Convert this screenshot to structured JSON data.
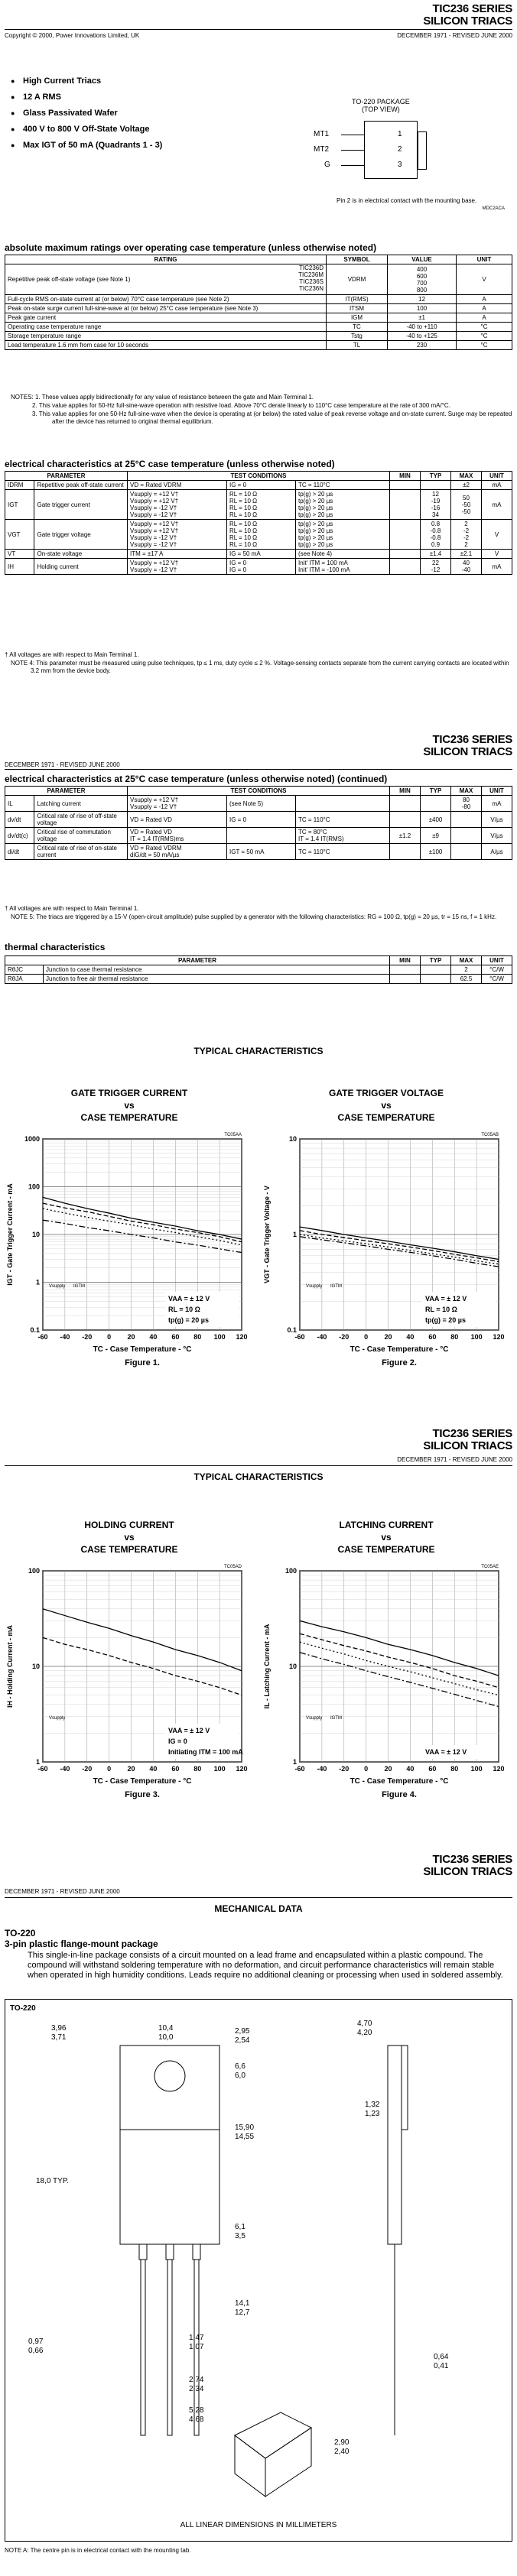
{
  "header": {
    "series": "TIC236 SERIES",
    "subtitle": "SILICON TRIACS",
    "copyright": "Copyright © 2000, Power Innovations Limited, UK",
    "revision": "DECEMBER 1971 - REVISED JUNE 2000"
  },
  "features": [
    "High Current Triacs",
    "12 A RMS",
    "Glass Passivated Wafer",
    "400 V to 800 V Off-State Voltage",
    "Max IGT of 50 mA (Quadrants 1 - 3)"
  ],
  "package": {
    "title_line1": "TO-220 PACKAGE",
    "title_line2": "(TOP VIEW)",
    "pins": [
      "MT1",
      "MT2",
      "G"
    ],
    "pin_numbers": [
      "1",
      "2",
      "3"
    ],
    "note": "Pin 2 is in electrical contact with the mounting base.",
    "code": "MDC2ACA"
  },
  "abs_max": {
    "heading": "absolute maximum ratings over operating case temperature (unless otherwise noted)",
    "headers": [
      "RATING",
      "SYMBOL",
      "VALUE",
      "UNIT"
    ],
    "rep_label": "Repetitive peak off-state voltage (see Note 1)",
    "parts": [
      "TIC236D",
      "TIC236M",
      "TIC236S",
      "TIC236N"
    ],
    "rep_symbol": "VDRM",
    "rep_values": [
      "400",
      "600",
      "700",
      "800"
    ],
    "rep_unit": "V",
    "rows": [
      [
        "Full-cycle RMS on-state current at (or below) 70°C case temperature (see Note 2)",
        "IT(RMS)",
        "12",
        "A"
      ],
      [
        "Peak on-state surge current full-sine-wave at (or below) 25°C case temperature (see Note 3)",
        "ITSM",
        "100",
        "A"
      ],
      [
        "Peak gate current",
        "IGM",
        "±1",
        "A"
      ],
      [
        "Operating case temperature range",
        "TC",
        "-40 to +110",
        "°C"
      ],
      [
        "Storage temperature range",
        "Tstg",
        "-40 to +125",
        "°C"
      ],
      [
        "Lead temperature 1.6 mm from case for 10 seconds",
        "TL",
        "230",
        "°C"
      ]
    ],
    "notes": [
      "NOTES: 1.  These values apply bidirectionally for any value of resistance between the gate and Main Terminal 1.",
      "2.  This value applies for 50-Hz full-sine-wave operation with resistive load. Above 70°C derate linearly to 110°C case temperature at the rate of 300 mA/°C.",
      "3.  This value applies for one 50-Hz full-sine-wave when the device is operating at (or below) the rated value of peak reverse voltage and on-state current. Surge may be repeated after the device has returned to original thermal equilibrium."
    ]
  },
  "elec": {
    "heading": "electrical characteristics at 25°C case temperature (unless otherwise noted)",
    "headers": [
      "PARAMETER",
      "TEST CONDITIONS",
      "MIN",
      "TYP",
      "MAX",
      "UNIT"
    ],
    "rows": [
      {
        "sym": "IDRM",
        "param": "Repetitive peak off-state current",
        "c1": [
          "VD = Rated VDRM"
        ],
        "c2": [
          "IG = 0"
        ],
        "c3": [
          "TC = 110°C"
        ],
        "min": [
          ""
        ],
        "typ": [
          ""
        ],
        "max": [
          "±2"
        ],
        "unit": "mA"
      },
      {
        "sym": "IGT",
        "param": "Gate trigger current",
        "c1": [
          "Vsupply = +12 V†",
          "Vsupply = +12 V†",
          "Vsupply = -12 V†",
          "Vsupply = -12 V†"
        ],
        "c2": [
          "RL = 10 Ω",
          "RL = 10 Ω",
          "RL = 10 Ω",
          "RL = 10 Ω"
        ],
        "c3": [
          "tp(g) > 20 µs",
          "tp(g) > 20 µs",
          "tp(g) > 20 µs",
          "tp(g) > 20 µs"
        ],
        "min": [
          "",
          "",
          "",
          ""
        ],
        "typ": [
          "12",
          "-19",
          "-16",
          "34"
        ],
        "max": [
          "50",
          "-50",
          "-50",
          ""
        ],
        "unit": "mA"
      },
      {
        "sym": "VGT",
        "param": "Gate trigger voltage",
        "c1": [
          "Vsupply = +12 V†",
          "Vsupply = +12 V†",
          "Vsupply = -12 V†",
          "Vsupply = -12 V†"
        ],
        "c2": [
          "RL = 10 Ω",
          "RL = 10 Ω",
          "RL = 10 Ω",
          "RL = 10 Ω"
        ],
        "c3": [
          "tp(g) > 20 µs",
          "tp(g) > 20 µs",
          "tp(g) > 20 µs",
          "tp(g) > 20 µs"
        ],
        "min": [
          "",
          "",
          "",
          ""
        ],
        "typ": [
          "0.8",
          "-0.8",
          "-0.8",
          "0.9"
        ],
        "max": [
          "2",
          "-2",
          "-2",
          "2"
        ],
        "unit": "V"
      },
      {
        "sym": "VT",
        "param": "On-state voltage",
        "c1": [
          "ITM = ±17 A"
        ],
        "c2": [
          "IG = 50 mA"
        ],
        "c3": [
          "(see Note 4)"
        ],
        "min": [
          ""
        ],
        "typ": [
          "±1.4"
        ],
        "max": [
          "±2.1"
        ],
        "unit": "V"
      },
      {
        "sym": "IH",
        "param": "Holding current",
        "c1": [
          "Vsupply = +12 V†",
          "Vsupply = -12 V†"
        ],
        "c2": [
          "IG = 0",
          "IG = 0"
        ],
        "c3": [
          "Init' ITM = 100 mA",
          "Init' ITM = -100 mA"
        ],
        "min": [
          "",
          ""
        ],
        "typ": [
          "22",
          "-12"
        ],
        "max": [
          "40",
          "-40"
        ],
        "unit": "mA"
      }
    ],
    "footnote": "† All voltages are with respect to Main Terminal 1.",
    "note4": "NOTE   4:  This parameter must be measured using pulse techniques, tp ≤ 1 ms, duty cycle ≤ 2 %. Voltage-sensing contacts separate from the current carrying contacts are located within 3.2 mm from the device body."
  },
  "elec2": {
    "heading": "electrical characteristics at 25°C case temperature (unless otherwise noted) (continued)",
    "headers": [
      "PARAMETER",
      "TEST CONDITIONS",
      "MIN",
      "TYP",
      "MAX",
      "UNIT"
    ],
    "rows": [
      {
        "sym": "IL",
        "param": "Latching current",
        "c1": [
          "Vsupply = +12 V†",
          "Vsupply = -12 V†"
        ],
        "c2": [
          "(see Note 5)",
          ""
        ],
        "c3": [
          "",
          ""
        ],
        "min": [
          "",
          ""
        ],
        "typ": [
          "",
          ""
        ],
        "max": [
          "80",
          "-80"
        ],
        "unit": "mA"
      },
      {
        "sym": "dv/dt",
        "param": "Critical rate of rise of off-state voltage",
        "c1": [
          "VD = Rated VD"
        ],
        "c2": [
          "IG = 0"
        ],
        "c3": [
          "TC = 110°C"
        ],
        "min": [
          ""
        ],
        "typ": [
          "±400"
        ],
        "max": [
          ""
        ],
        "unit": "V/µs"
      },
      {
        "sym": "dv/dt(c)",
        "param": "Critical rise of commutation voltage",
        "c1": [
          "VD = Rated VD",
          "IT = 1.4 IT(RMS)ms"
        ],
        "c2": [
          ""
        ],
        "c3": [
          "TC = 80°C",
          "IT = 1.4 IT(RMS)"
        ],
        "min": [
          "±1.2"
        ],
        "typ": [
          "±9"
        ],
        "max": [
          ""
        ],
        "unit": "V/µs"
      },
      {
        "sym": "di/dt",
        "param": "Critical rate of rise of on-state current",
        "c1": [
          "VD = Rated VDRM",
          "diG/dt = 50 mA/µs"
        ],
        "c2": [
          "IGT = 50 mA"
        ],
        "c3": [
          "TC = 110°C"
        ],
        "min": [
          ""
        ],
        "typ": [
          "±100"
        ],
        "max": [
          ""
        ],
        "unit": "A/µs"
      }
    ],
    "footnote": "† All voltages are with respect to Main Terminal 1.",
    "note5": "NOTE   5:  The triacs are triggered by a 15-V (open-circuit amplitude) pulse supplied by a generator with the following characteristics: RG = 100 Ω, tp(g) = 20 µs, tr = 15 ns, f = 1 kHz.",
    "thermal_heading": "thermal characteristics",
    "thermal_headers": [
      "PARAMETER",
      "MIN",
      "TYP",
      "MAX",
      "UNIT"
    ],
    "thermal_rows": [
      [
        "RθJC",
        "Junction to case thermal resistance",
        "",
        "",
        "2",
        "°C/W"
      ],
      [
        "RθJA",
        "Junction to free air thermal resistance",
        "",
        "",
        "62.5",
        "°C/W"
      ]
    ]
  },
  "typ_heading": "TYPICAL CHARACTERISTICS",
  "charts_text": {
    "fig1": {
      "t1": "GATE TRIGGER CURRENT",
      "t2": "vs",
      "t3": "CASE TEMPERATURE",
      "code": "TC05AA",
      "caption": "Figure 1.",
      "xlabel": "TC - Case Temperature - °C",
      "ylabel": "IGT - Gate Trigger Current - mA",
      "cond": [
        "VAA = ± 12 V",
        "RL = 10 Ω",
        "tp(g) = 20 µs"
      ],
      "legend_hdr": [
        "Vsupply",
        "IGTM"
      ]
    },
    "fig2": {
      "t1": "GATE TRIGGER VOLTAGE",
      "t2": "vs",
      "t3": "CASE TEMPERATURE",
      "code": "TC05AB",
      "caption": "Figure 2.",
      "xlabel": "TC - Case Temperature - °C",
      "ylabel": "VGT - Gate Trigger Voltage - V",
      "cond": [
        "VAA = ± 12 V",
        "RL = 10 Ω",
        "tp(g) = 20 µs"
      ],
      "legend_hdr": [
        "Vsupply",
        "IGTM"
      ]
    },
    "fig3": {
      "t1": "HOLDING CURRENT",
      "t2": "vs",
      "t3": "CASE TEMPERATURE",
      "code": "TC05AD",
      "caption": "Figure 3.",
      "xlabel": "TC - Case Temperature - °C",
      "ylabel": "IH - Holding Current - mA",
      "cond": [
        "VAA = ± 12 V",
        "IG = 0",
        "Initiating ITM = 100 mA"
      ],
      "legend_hdr": [
        "Vsupply"
      ]
    },
    "fig4": {
      "t1": "LATCHING CURRENT",
      "t2": "vs",
      "t3": "CASE TEMPERATURE",
      "code": "TC05AE",
      "caption": "Figure 4.",
      "xlabel": "TC - Case Temperature - °C",
      "ylabel": "IL - Latching Current - mA",
      "cond": [
        "VAA = ± 12 V"
      ],
      "legend_hdr": [
        "Vsupply",
        "IGTM"
      ]
    }
  },
  "chart_data": [
    {
      "type": "line",
      "title": "GATE TRIGGER CURRENT vs CASE TEMPERATURE",
      "xlabel": "TC - Case Temperature - °C",
      "ylabel": "IGT - Gate Trigger Current - mA",
      "xlim": [
        -60,
        120
      ],
      "ylim": [
        0.1,
        1000
      ],
      "yscale": "log",
      "x": [
        -60,
        -40,
        -20,
        0,
        20,
        40,
        60,
        80,
        100,
        120
      ],
      "series": [
        {
          "values": [
            60,
            45,
            35,
            28,
            22,
            18,
            15,
            12,
            10,
            8
          ]
        },
        {
          "values": [
            45,
            36,
            30,
            24,
            19,
            16,
            13,
            11,
            9,
            7
          ]
        },
        {
          "values": [
            35,
            28,
            23,
            19,
            16,
            13,
            11,
            9,
            7.5,
            6
          ]
        },
        {
          "values": [
            20,
            17,
            14,
            12,
            10,
            8.5,
            7,
            6,
            5,
            4.2
          ]
        }
      ]
    },
    {
      "type": "line",
      "title": "GATE TRIGGER VOLTAGE vs CASE TEMPERATURE",
      "xlabel": "TC - Case Temperature - °C",
      "ylabel": "VGT - Gate Trigger Voltage - V",
      "xlim": [
        -60,
        120
      ],
      "ylim": [
        0.1,
        10
      ],
      "yscale": "log",
      "x": [
        -60,
        -40,
        -20,
        0,
        20,
        40,
        60,
        80,
        100,
        120
      ],
      "series": [
        {
          "values": [
            1.2,
            1.1,
            1.0,
            0.92,
            0.85,
            0.78,
            0.72,
            0.66,
            0.6,
            0.55
          ]
        },
        {
          "values": [
            1.1,
            1.0,
            0.93,
            0.86,
            0.8,
            0.74,
            0.68,
            0.62,
            0.57,
            0.52
          ]
        },
        {
          "values": [
            1.0,
            0.92,
            0.86,
            0.8,
            0.74,
            0.68,
            0.63,
            0.58,
            0.53,
            0.49
          ]
        },
        {
          "values": [
            0.95,
            0.88,
            0.82,
            0.76,
            0.7,
            0.65,
            0.6,
            0.55,
            0.5,
            0.46
          ]
        }
      ]
    },
    {
      "type": "line",
      "title": "HOLDING CURRENT vs CASE TEMPERATURE",
      "xlabel": "TC - Case Temperature - °C",
      "ylabel": "IH - Holding Current - mA",
      "xlim": [
        -60,
        120
      ],
      "ylim": [
        1,
        100
      ],
      "yscale": "log",
      "x": [
        -60,
        -40,
        -20,
        0,
        20,
        40,
        60,
        80,
        100,
        120
      ],
      "series": [
        {
          "values": [
            40,
            34,
            29,
            25,
            21,
            18,
            15,
            13,
            11,
            9
          ]
        },
        {
          "values": [
            20,
            17,
            15,
            13,
            11,
            9.5,
            8,
            7,
            6,
            5
          ]
        }
      ]
    },
    {
      "type": "line",
      "title": "LATCHING CURRENT vs CASE TEMPERATURE",
      "xlabel": "TC - Case Temperature - °C",
      "ylabel": "IL - Latching Current - mA",
      "xlim": [
        -60,
        120
      ],
      "ylim": [
        1,
        100
      ],
      "yscale": "log",
      "x": [
        -60,
        -40,
        -20,
        0,
        20,
        40,
        60,
        80,
        100,
        120
      ],
      "series": [
        {
          "values": [
            30,
            26,
            23,
            20,
            17,
            15,
            13,
            11,
            9.5,
            8
          ]
        },
        {
          "values": [
            22,
            19,
            16.5,
            14.5,
            12.5,
            11,
            9.5,
            8,
            7,
            6
          ]
        },
        {
          "values": [
            18,
            15.5,
            13.5,
            11.5,
            10,
            8.8,
            7.6,
            6.6,
            5.7,
            5
          ]
        },
        {
          "values": [
            14,
            12,
            10.5,
            9,
            7.8,
            6.8,
            5.9,
            5.1,
            4.4,
            3.8
          ]
        }
      ]
    }
  ],
  "mech": {
    "heading": "MECHANICAL DATA",
    "pkg": "TO-220",
    "pkg_desc": "3-pin plastic flange-mount package",
    "text": "This single-in-line package consists of a circuit mounted on a lead frame and encapsulated within a plastic compound. The compound will withstand soldering temperature with no deformation, and circuit performance characteristics will remain stable when operated in high humidity conditions. Leads require no additional cleaning or processing when used in soldered assembly.",
    "drawing_label": "TO-220",
    "dims": [
      "3,96",
      "3,71",
      "10,4",
      "10,0",
      "2,95",
      "2,54",
      "6,6",
      "6,0",
      "15,90",
      "14,55",
      "18,0 TYP.",
      "6,1",
      "3,5",
      "14,1",
      "12,7",
      "0,97",
      "0,66",
      "1,47",
      "1,07",
      "2,74",
      "2,34",
      "5,28",
      "4,68",
      "4,70",
      "4,20",
      "1,32",
      "1,23",
      "0,64",
      "0,41",
      "2,90",
      "2,40"
    ],
    "all_linear": "ALL LINEAR DIMENSIONS IN MILLIMETERS",
    "note_a": "NOTE   A:  The centre pin is in electrical contact with the mounting tab."
  }
}
